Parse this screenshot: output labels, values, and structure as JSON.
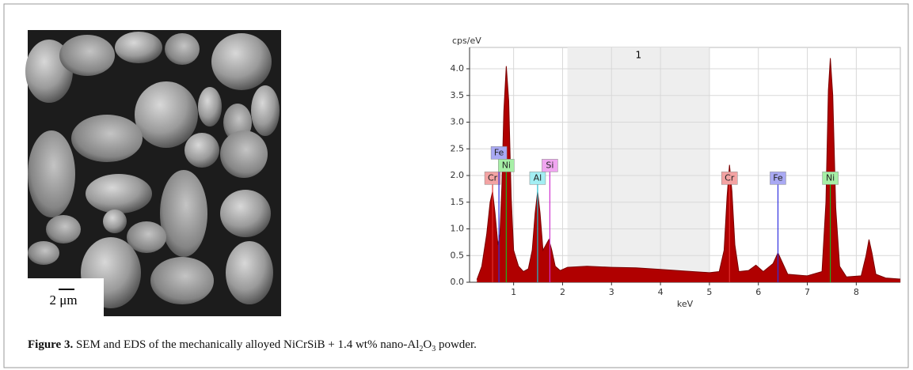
{
  "sem_image": {
    "scale_bar": "2 μm"
  },
  "caption": {
    "label": "Figure 3.",
    "text": [
      "SEM and EDS of the mechanically alloyed NiCrSiB + 1.4 wt% nano-Al",
      "2",
      "O",
      "3",
      " powder."
    ]
  },
  "chart_data": {
    "type": "area",
    "ylabel": "cps/eV",
    "xlabel": "keV",
    "color": "#b00000",
    "grid": true,
    "xlim": [
      0.1,
      8.9
    ],
    "ylim": [
      0,
      4.4
    ],
    "xticks": [
      1,
      2,
      3,
      4,
      5,
      6,
      7,
      8
    ],
    "yticks": [
      {
        "value": 0,
        "label": "0.0"
      },
      0.5,
      {
        "value": 1,
        "label": "1.0"
      },
      1.5,
      {
        "value": 2,
        "label": "2.0"
      },
      2.5,
      {
        "value": 3,
        "label": "3.0"
      },
      3.5,
      {
        "value": 4,
        "label": "4.0"
      }
    ],
    "regions": [
      {
        "label": "1",
        "x": [
          2.1,
          5.0
        ]
      }
    ],
    "elements": [
      {
        "label": "Cr",
        "x": 0.57,
        "color": "#e23030",
        "box": "#f3a3a3"
      },
      {
        "label": "Fe",
        "x": 0.7,
        "color": "#3030e0",
        "box": "#a9a9f3"
      },
      {
        "label": "Ni",
        "x": 0.85,
        "color": "#20b020",
        "box": "#a6efa6"
      },
      {
        "label": "Al",
        "x": 1.49,
        "color": "#20c0d0",
        "box": "#a3eef3"
      },
      {
        "label": "Si",
        "x": 1.74,
        "color": "#d030d0",
        "box": "#f0a6f0"
      },
      {
        "label": "Cr",
        "x": 5.41,
        "color": "#e23030",
        "box": "#f3a3a3"
      },
      {
        "label": "Fe",
        "x": 6.4,
        "color": "#3030e0",
        "box": "#a9a9f3"
      },
      {
        "label": "Ni",
        "x": 7.47,
        "color": "#20b020",
        "box": "#a6efa6"
      }
    ],
    "x": [
      0.25,
      0.35,
      0.45,
      0.52,
      0.57,
      0.62,
      0.68,
      0.72,
      0.76,
      0.8,
      0.85,
      0.9,
      0.95,
      1.0,
      1.1,
      1.2,
      1.3,
      1.38,
      1.44,
      1.49,
      1.54,
      1.6,
      1.66,
      1.72,
      1.78,
      1.85,
      1.95,
      2.1,
      2.5,
      3.0,
      3.5,
      4.0,
      4.5,
      5.0,
      5.2,
      5.3,
      5.36,
      5.41,
      5.46,
      5.52,
      5.6,
      5.8,
      5.95,
      6.1,
      6.3,
      6.4,
      6.5,
      6.6,
      7.0,
      7.3,
      7.38,
      7.43,
      7.47,
      7.52,
      7.58,
      7.66,
      7.8,
      8.1,
      8.2,
      8.26,
      8.32,
      8.4,
      8.6,
      8.9
    ],
    "series": [
      {
        "values": [
          0.05,
          0.3,
          0.9,
          1.5,
          1.7,
          1.3,
          0.7,
          0.9,
          1.8,
          3.2,
          4.05,
          3.4,
          1.6,
          0.6,
          0.3,
          0.2,
          0.25,
          0.6,
          1.3,
          1.7,
          1.3,
          0.6,
          0.7,
          0.8,
          0.6,
          0.3,
          0.22,
          0.28,
          0.3,
          0.28,
          0.27,
          0.24,
          0.21,
          0.18,
          0.2,
          0.6,
          1.6,
          2.2,
          1.7,
          0.7,
          0.2,
          0.22,
          0.32,
          0.2,
          0.35,
          0.55,
          0.35,
          0.15,
          0.12,
          0.2,
          1.5,
          3.6,
          4.2,
          3.5,
          1.4,
          0.3,
          0.1,
          0.12,
          0.5,
          0.8,
          0.55,
          0.15,
          0.08,
          0.06
        ]
      }
    ]
  }
}
